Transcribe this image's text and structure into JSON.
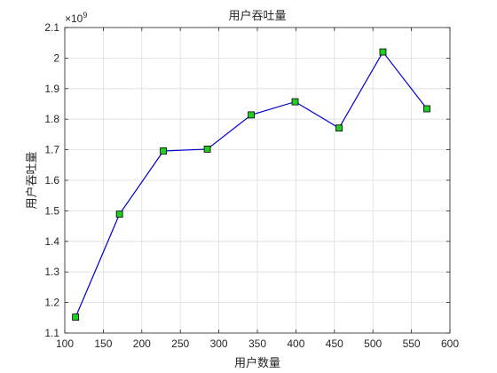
{
  "chart_data": {
    "type": "line",
    "title": "用户吞吐量",
    "xlabel": "用户数量",
    "ylabel": "用户吞吐量",
    "y_multiplier_base": "×10",
    "y_multiplier_exp": "9",
    "xlim": [
      100,
      600
    ],
    "ylim": [
      1.1,
      2.1
    ],
    "x_ticks": [
      100,
      150,
      200,
      250,
      300,
      350,
      400,
      450,
      500,
      550,
      600
    ],
    "y_ticks": [
      1.1,
      1.2,
      1.3,
      1.4,
      1.5,
      1.6,
      1.7,
      1.8,
      1.9,
      2.0,
      2.1
    ],
    "x_tick_labels": [
      "100",
      "150",
      "200",
      "250",
      "300",
      "350",
      "400",
      "450",
      "500",
      "550",
      "600"
    ],
    "y_tick_labels": [
      "1.1",
      "1.2",
      "1.3",
      "1.4",
      "1.5",
      "1.6",
      "1.7",
      "1.8",
      "1.9",
      "2",
      "2.1"
    ],
    "grid": true,
    "series": [
      {
        "x": [
          114,
          171,
          228,
          285,
          342,
          399,
          456,
          513,
          570
        ],
        "y": [
          1.152,
          1.489,
          1.696,
          1.702,
          1.814,
          1.857,
          1.771,
          2.02,
          1.834
        ],
        "line_color": "#0000cc",
        "marker_color": "#22cc22",
        "marker": "square"
      }
    ]
  }
}
